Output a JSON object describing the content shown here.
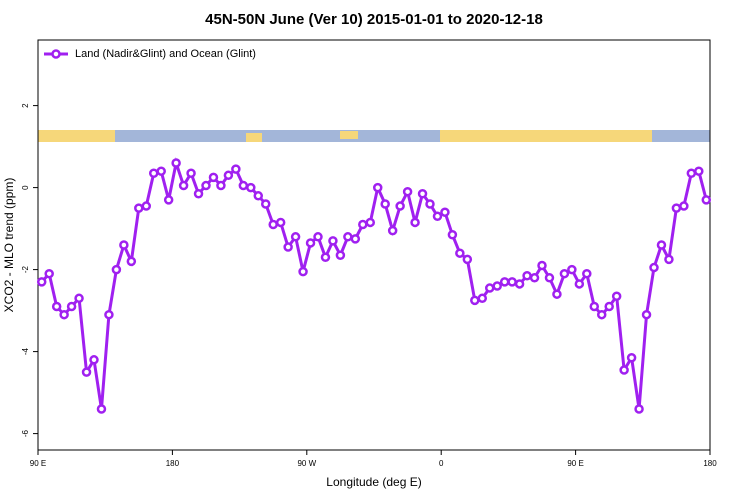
{
  "chart_data": {
    "type": "line",
    "title": "45N-50N June (Ver 10)   2015-01-01 to 2020-12-18",
    "x_label": "Longitude (deg E)",
    "y_label": "XCO2 - MLO trend (ppm)",
    "xlim": [
      90,
      540
    ],
    "ylim": [
      -6.4,
      3.6
    ],
    "xticks": [
      {
        "value": 90,
        "label": "90 E"
      },
      {
        "value": 180,
        "label": "180"
      },
      {
        "value": 270,
        "label": "90 W"
      },
      {
        "value": 360,
        "label": "0"
      },
      {
        "value": 450,
        "label": "90 E"
      },
      {
        "value": 540,
        "label": "180"
      }
    ],
    "yticks": [
      -6,
      -4,
      -2,
      0,
      2
    ],
    "legend": "top-left",
    "x": [
      92.5,
      97.5,
      102.5,
      107.5,
      112.5,
      117.5,
      122.5,
      127.5,
      132.5,
      137.5,
      142.5,
      147.5,
      152.5,
      157.5,
      162.5,
      167.5,
      172.5,
      177.5,
      182.5,
      187.5,
      192.5,
      197.5,
      202.5,
      207.5,
      212.5,
      217.5,
      222.5,
      227.5,
      232.5,
      237.5,
      242.5,
      247.5,
      252.5,
      257.5,
      262.5,
      267.5,
      272.5,
      277.5,
      282.5,
      287.5,
      292.5,
      297.5,
      302.5,
      307.5,
      312.5,
      317.5,
      322.5,
      327.5,
      332.5,
      337.5,
      342.5,
      347.5,
      352.5,
      357.5,
      362.5,
      367.5,
      372.5,
      377.5,
      382.5,
      387.5,
      392.5,
      397.5,
      402.5,
      407.5,
      412.5,
      417.5,
      422.5,
      427.5,
      432.5,
      437.5,
      442.5,
      447.5,
      452.5,
      457.5,
      462.5,
      467.5,
      472.5,
      477.5,
      482.5,
      487.5,
      492.5,
      497.5,
      502.5,
      507.5,
      512.5,
      517.5,
      522.5,
      527.5,
      532.5,
      537.5
    ],
    "series": [
      {
        "name": "Land (Nadir&Glint) and Ocean (Glint)",
        "color": "#a020f0",
        "values": [
          -2.3,
          -2.1,
          -2.9,
          -3.1,
          -2.9,
          -2.7,
          -4.5,
          -4.2,
          -5.4,
          -3.1,
          -2.0,
          -1.4,
          -1.8,
          -0.5,
          -0.45,
          0.35,
          0.4,
          -0.3,
          0.6,
          0.05,
          0.35,
          -0.15,
          0.05,
          0.25,
          0.05,
          0.3,
          0.45,
          0.05,
          0.0,
          -0.2,
          -0.4,
          -0.9,
          -0.85,
          -1.45,
          -1.2,
          -2.05,
          -1.35,
          -1.2,
          -1.7,
          -1.3,
          -1.65,
          -1.2,
          -1.25,
          -0.9,
          -0.85,
          0.0,
          -0.4,
          -1.05,
          -0.45,
          -0.1,
          -0.85,
          -0.15,
          -0.4,
          -0.7,
          -0.6,
          -1.15,
          -1.6,
          -1.75,
          -2.75,
          -2.7,
          -2.45,
          -2.4,
          -2.3,
          -2.3,
          -2.35,
          -2.15,
          -2.2,
          -1.9,
          -2.2,
          -2.6,
          -2.1,
          -2.0,
          -2.35,
          -2.1,
          -2.9,
          -3.1,
          -2.9,
          -2.65,
          -4.45,
          -4.15,
          -5.4,
          -3.1,
          -1.95,
          -1.4,
          -1.75,
          -0.5,
          -0.45,
          0.35,
          0.4,
          -0.3
        ]
      }
    ]
  }
}
